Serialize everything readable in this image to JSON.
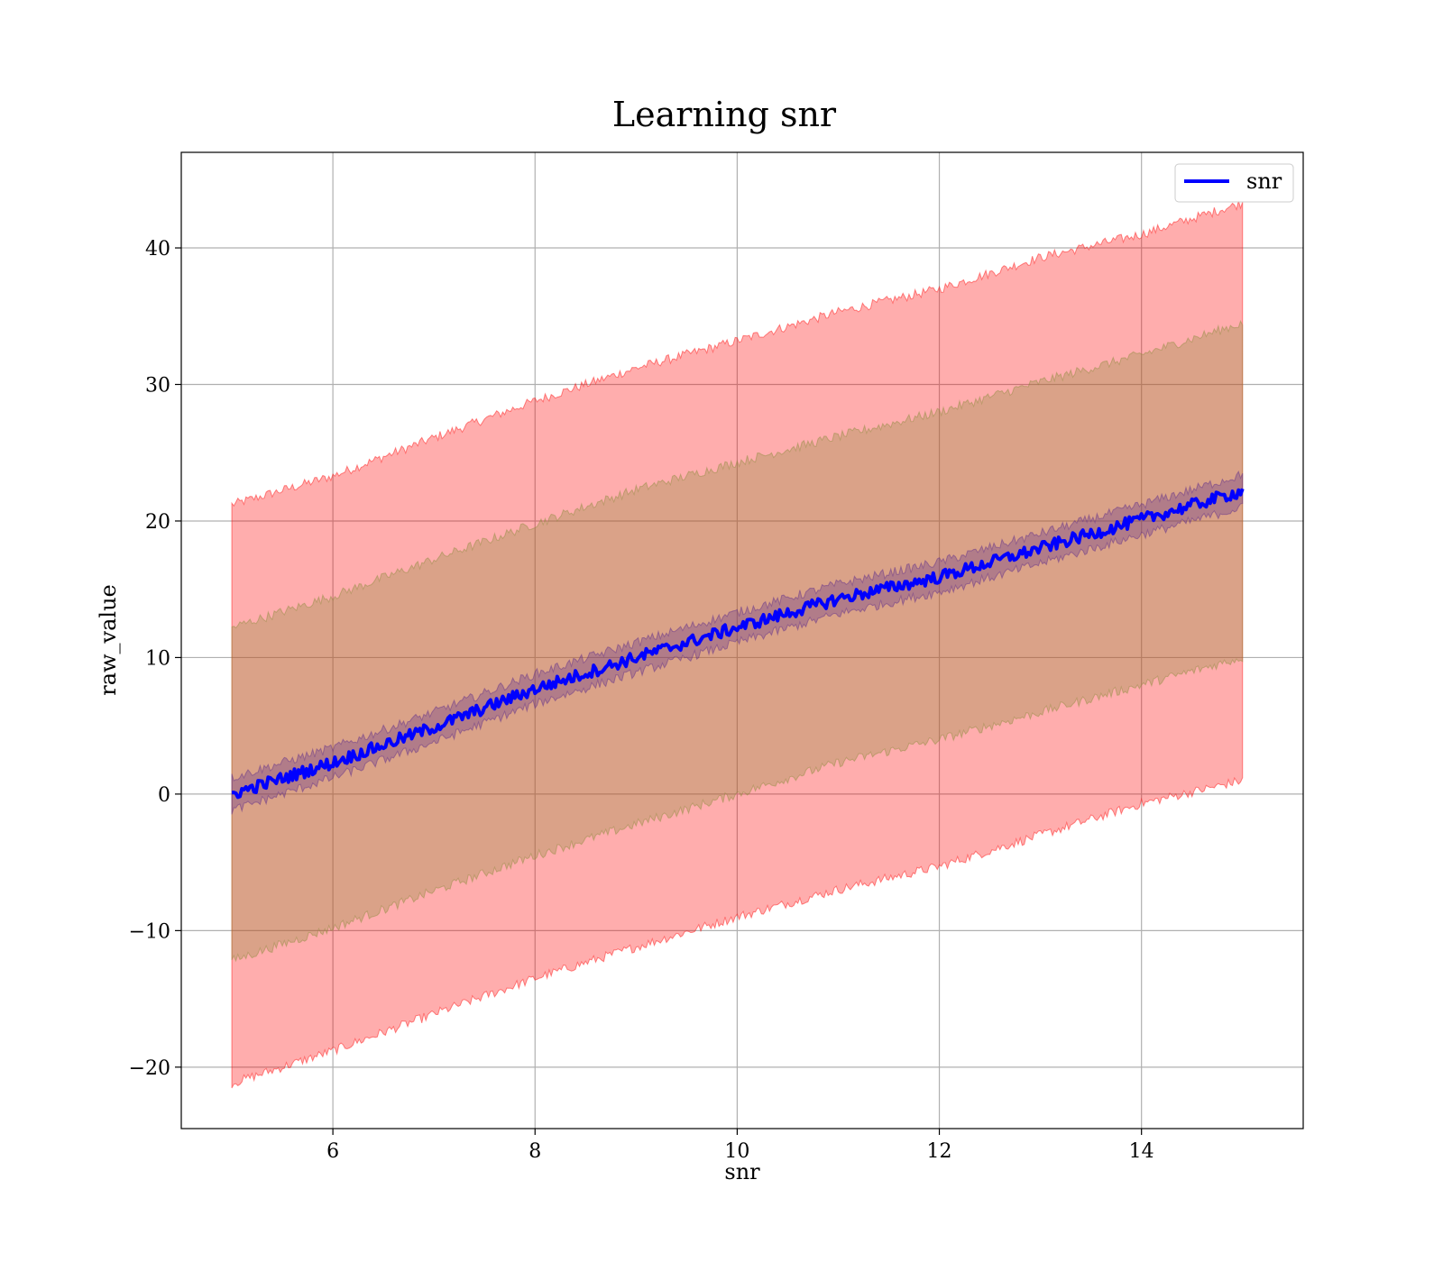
{
  "chart_data": {
    "type": "line",
    "title": "Learning snr",
    "xlabel": "snr",
    "ylabel": "raw_value",
    "xlim": [
      4.5,
      15.6
    ],
    "ylim": [
      -24.5,
      47.0
    ],
    "x_ticks": [
      6,
      8,
      10,
      12,
      14
    ],
    "y_ticks": [
      -20,
      -10,
      0,
      10,
      20,
      30,
      40
    ],
    "x_tick_labels": [
      "6",
      "8",
      "10",
      "12",
      "14"
    ],
    "y_tick_labels": [
      "−20",
      "−10",
      "0",
      "10",
      "20",
      "30",
      "40"
    ],
    "grid": true,
    "legend": {
      "position": "top-right",
      "entries": [
        "snr"
      ]
    },
    "x_range": [
      5,
      15
    ],
    "series": [
      {
        "name": "snr",
        "color": "#0000ff",
        "x": [
          5,
          6,
          7,
          8,
          9,
          10,
          11,
          12,
          13,
          14,
          15
        ],
        "y": [
          0.0,
          2.3,
          4.9,
          7.7,
          10.0,
          12.2,
          14.3,
          15.9,
          18.0,
          20.1,
          22.2
        ]
      }
    ],
    "bands": [
      {
        "color": "#ff0000",
        "x": [
          5,
          6,
          7,
          8,
          9,
          10,
          11,
          12,
          13,
          14,
          15
        ],
        "upper": [
          21.2,
          23.3,
          26.1,
          28.8,
          31.2,
          33.2,
          35.3,
          37.0,
          39.3,
          41.0,
          43.3
        ],
        "lower": [
          -21.2,
          -18.8,
          -16.1,
          -13.5,
          -11.2,
          -9.0,
          -7.0,
          -5.3,
          -3.0,
          -0.7,
          1.0
        ]
      },
      {
        "color": "#8c8c3c",
        "x": [
          5,
          6,
          7,
          8,
          9,
          10,
          11,
          12,
          13,
          14,
          15
        ],
        "upper": [
          12.2,
          14.5,
          17.2,
          19.8,
          22.3,
          24.3,
          26.2,
          28.0,
          30.2,
          32.2,
          34.5
        ],
        "lower": [
          -12.2,
          -9.8,
          -7.1,
          -4.5,
          -2.2,
          0.0,
          2.3,
          4.0,
          6.0,
          8.0,
          10.0
        ]
      },
      {
        "color": "#5a2a8c",
        "x": [
          5,
          6,
          7,
          8,
          9,
          10,
          11,
          12,
          13,
          14,
          15
        ],
        "upper": [
          1.2,
          3.4,
          6.0,
          8.8,
          11.1,
          13.3,
          15.4,
          17.0,
          19.1,
          21.2,
          23.4
        ],
        "lower": [
          -1.2,
          1.2,
          3.8,
          6.6,
          8.9,
          11.1,
          13.2,
          14.8,
          16.9,
          19.0,
          21.0
        ]
      }
    ]
  }
}
